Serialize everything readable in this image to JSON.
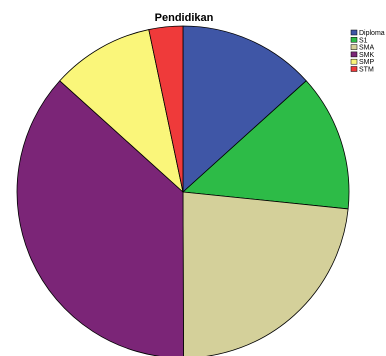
{
  "chart_data": {
    "type": "pie",
    "title": "Pendidikan",
    "categories": [
      "Diploma",
      "S1",
      "SMA",
      "SMK",
      "SMP",
      "STM"
    ],
    "values": [
      13.3,
      13.3,
      23.3,
      36.7,
      10.0,
      3.3
    ],
    "unit": "percent",
    "colors": [
      "#3F56A6",
      "#2DBB47",
      "#D4D09A",
      "#7B2577",
      "#FAF67A",
      "#EF3A3A"
    ],
    "start_angle_deg": 0,
    "direction": "clockwise",
    "legend_position": "top-right"
  }
}
